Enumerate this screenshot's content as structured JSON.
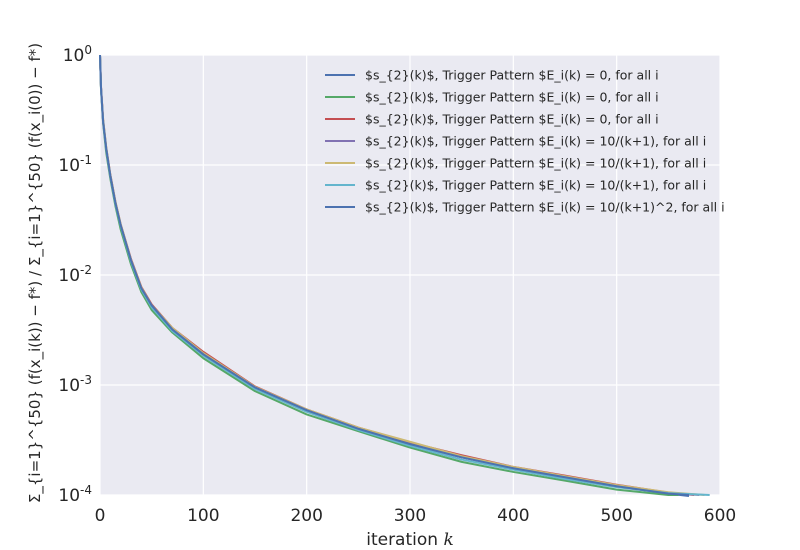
{
  "chart_data": {
    "type": "line",
    "title": "",
    "xlabel_prefix": "iteration ",
    "xlabel_var": "k",
    "ylabel": "Σ_{i=1}^{50} (f(x_i(k)) − f*) / Σ_{i=1}^{50} (f(x_i(0)) − f*)",
    "yscale": "log",
    "xlim": [
      0,
      600
    ],
    "ylim": [
      0.0001,
      1
    ],
    "x_ticks": [
      "0",
      "100",
      "200",
      "300",
      "400",
      "500",
      "600"
    ],
    "y_ticks": [
      {
        "base": "10",
        "exp": "-4"
      },
      {
        "base": "10",
        "exp": "-3"
      },
      {
        "base": "10",
        "exp": "-2"
      },
      {
        "base": "10",
        "exp": "-1"
      },
      {
        "base": "10",
        "exp": "0"
      }
    ],
    "grid": true,
    "legend_position": "top-right",
    "series": [
      {
        "name": "$s_{2}(k)$, Trigger Pattern $E_i(k) = 0, for all i",
        "color": "#4c72b0",
        "x": [
          0,
          1,
          3,
          6,
          10,
          15,
          20,
          30,
          40,
          50,
          70,
          100,
          150,
          200,
          250,
          300,
          350,
          400,
          450,
          500,
          550,
          570
        ],
        "y": [
          1.0,
          0.5,
          0.25,
          0.14,
          0.08,
          0.045,
          0.028,
          0.0135,
          0.0075,
          0.0052,
          0.0032,
          0.0019,
          0.00094,
          0.00058,
          0.0004,
          0.00029,
          0.00022,
          0.000175,
          0.000145,
          0.00012,
          0.000103,
          9.8e-05
        ]
      },
      {
        "name": "$s_{2}(k)$, Trigger Pattern $E_i(k) = 0, for all i",
        "color": "#55a868",
        "x": [
          0,
          1,
          3,
          6,
          10,
          15,
          20,
          30,
          40,
          50,
          70,
          100,
          150,
          200,
          250,
          300,
          350,
          400,
          450,
          500,
          550,
          560
        ],
        "y": [
          1.0,
          0.48,
          0.24,
          0.13,
          0.075,
          0.042,
          0.026,
          0.0125,
          0.007,
          0.0048,
          0.003,
          0.00175,
          0.00088,
          0.00054,
          0.00038,
          0.00027,
          0.0002,
          0.000162,
          0.000135,
          0.000112,
          0.0001,
          0.0001
        ]
      },
      {
        "name": "$s_{2}(k)$, Trigger Pattern $E_i(k) = 0, for all i",
        "color": "#c44e52",
        "x": [
          0,
          1,
          3,
          6,
          10,
          15,
          20,
          30,
          40,
          50,
          70,
          100,
          150,
          200,
          250,
          300,
          350,
          400,
          450,
          500,
          550,
          575
        ],
        "y": [
          1.0,
          0.51,
          0.26,
          0.145,
          0.082,
          0.046,
          0.029,
          0.014,
          0.0078,
          0.0054,
          0.0033,
          0.002,
          0.00097,
          0.0006,
          0.00041,
          0.0003,
          0.00023,
          0.00018,
          0.00015,
          0.000124,
          0.000105,
          0.0001
        ]
      },
      {
        "name": "$s_{2}(k)$, Trigger Pattern $E_i(k) = 10/(k+1), for all i",
        "color": "#8172b2",
        "x": [
          0,
          1,
          3,
          6,
          10,
          15,
          20,
          30,
          40,
          50,
          70,
          100,
          150,
          200,
          250,
          300,
          350,
          400,
          450,
          500,
          550,
          580
        ],
        "y": [
          1.0,
          0.5,
          0.25,
          0.14,
          0.079,
          0.045,
          0.0285,
          0.0138,
          0.0076,
          0.0053,
          0.0032,
          0.0019,
          0.00095,
          0.00059,
          0.0004,
          0.00029,
          0.00022,
          0.000178,
          0.000147,
          0.000122,
          0.000104,
          0.0001
        ]
      },
      {
        "name": "$s_{2}(k)$, Trigger Pattern $E_i(k) = 10/(k+1), for all i",
        "color": "#ccb974",
        "x": [
          0,
          1,
          3,
          6,
          10,
          15,
          20,
          30,
          40,
          50,
          70,
          100,
          150,
          200,
          250,
          300,
          350,
          400,
          450,
          500,
          550,
          585
        ],
        "y": [
          1.0,
          0.5,
          0.26,
          0.145,
          0.081,
          0.046,
          0.029,
          0.0137,
          0.0077,
          0.0053,
          0.0033,
          0.00195,
          0.00096,
          0.0006,
          0.00041,
          0.000305,
          0.000225,
          0.00018,
          0.000148,
          0.000123,
          0.000106,
          0.0001
        ]
      },
      {
        "name": "$s_{2}(k)$, Trigger Pattern $E_i(k) = 10/(k+1), for all i",
        "color": "#64b5cd",
        "x": [
          0,
          1,
          3,
          6,
          10,
          15,
          20,
          30,
          40,
          50,
          70,
          100,
          150,
          200,
          250,
          300,
          350,
          400,
          450,
          500,
          550,
          590
        ],
        "y": [
          1.0,
          0.49,
          0.25,
          0.14,
          0.079,
          0.044,
          0.028,
          0.0133,
          0.0074,
          0.0051,
          0.0031,
          0.00185,
          0.00092,
          0.00057,
          0.00039,
          0.00028,
          0.00021,
          0.00017,
          0.00014,
          0.000118,
          0.000104,
          0.0001
        ]
      },
      {
        "name": "$s_{2}(k)$, Trigger Pattern $E_i(k) = 10/(k+1)^2, for all i",
        "color": "#4c72b0",
        "x": [
          0,
          1,
          3,
          6,
          10,
          15,
          20,
          30,
          40,
          50,
          70,
          100,
          150,
          200,
          250,
          300,
          350,
          400,
          450,
          500,
          550,
          570
        ],
        "y": [
          1.0,
          0.5,
          0.25,
          0.142,
          0.08,
          0.045,
          0.0285,
          0.0136,
          0.0076,
          0.0053,
          0.0032,
          0.0019,
          0.00095,
          0.00059,
          0.0004,
          0.00029,
          0.00022,
          0.000175,
          0.000145,
          0.00012,
          0.000103,
          0.0001
        ]
      }
    ]
  }
}
